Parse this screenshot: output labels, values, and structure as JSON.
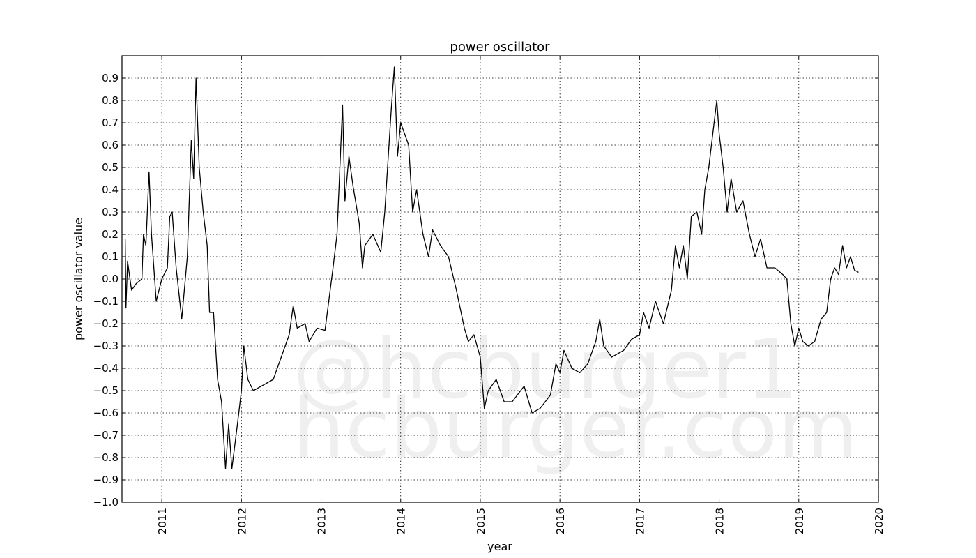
{
  "chart_data": {
    "type": "line",
    "title": "power oscillator",
    "xlabel": "year",
    "ylabel": "power oscillator value",
    "xlim": [
      2010.5,
      2020
    ],
    "ylim": [
      -1.0,
      1.0
    ],
    "grid": true,
    "line_color": "#000000",
    "xticks": [
      "2011",
      "2012",
      "2013",
      "2014",
      "2015",
      "2016",
      "2017",
      "2018",
      "2019",
      "2020"
    ],
    "yticks": [
      "−1.0",
      "−0.9",
      "−0.8",
      "−0.7",
      "−0.6",
      "−0.5",
      "−0.4",
      "−0.3",
      "−0.2",
      "−0.1",
      "0.0",
      "0.1",
      "0.2",
      "0.3",
      "0.4",
      "0.5",
      "0.6",
      "0.7",
      "0.8",
      "0.9"
    ],
    "watermark": [
      "@hcburger1",
      "hcburger.com"
    ],
    "series": [
      {
        "points": [
          [
            2010.54,
            0.18
          ],
          [
            2010.55,
            -0.13
          ],
          [
            2010.57,
            0.08
          ],
          [
            2010.62,
            -0.05
          ],
          [
            2010.68,
            -0.02
          ],
          [
            2010.75,
            0.0
          ],
          [
            2010.77,
            0.2
          ],
          [
            2010.8,
            0.15
          ],
          [
            2010.84,
            0.48
          ],
          [
            2010.87,
            0.2
          ],
          [
            2010.93,
            -0.1
          ],
          [
            2011.0,
            0.0
          ],
          [
            2011.07,
            0.05
          ],
          [
            2011.1,
            0.28
          ],
          [
            2011.13,
            0.3
          ],
          [
            2011.18,
            0.05
          ],
          [
            2011.25,
            -0.18
          ],
          [
            2011.32,
            0.1
          ],
          [
            2011.37,
            0.62
          ],
          [
            2011.4,
            0.45
          ],
          [
            2011.43,
            0.9
          ],
          [
            2011.47,
            0.5
          ],
          [
            2011.52,
            0.3
          ],
          [
            2011.57,
            0.15
          ],
          [
            2011.6,
            -0.15
          ],
          [
            2011.65,
            -0.15
          ],
          [
            2011.7,
            -0.45
          ],
          [
            2011.75,
            -0.55
          ],
          [
            2011.8,
            -0.85
          ],
          [
            2011.84,
            -0.65
          ],
          [
            2011.88,
            -0.85
          ],
          [
            2011.95,
            -0.65
          ],
          [
            2012.0,
            -0.5
          ],
          [
            2012.03,
            -0.3
          ],
          [
            2012.08,
            -0.45
          ],
          [
            2012.15,
            -0.5
          ],
          [
            2012.25,
            -0.48
          ],
          [
            2012.4,
            -0.45
          ],
          [
            2012.5,
            -0.35
          ],
          [
            2012.6,
            -0.25
          ],
          [
            2012.65,
            -0.12
          ],
          [
            2012.7,
            -0.22
          ],
          [
            2012.8,
            -0.2
          ],
          [
            2012.85,
            -0.28
          ],
          [
            2012.95,
            -0.22
          ],
          [
            2013.05,
            -0.23
          ],
          [
            2013.15,
            0.05
          ],
          [
            2013.2,
            0.2
          ],
          [
            2013.27,
            0.78
          ],
          [
            2013.3,
            0.35
          ],
          [
            2013.35,
            0.55
          ],
          [
            2013.4,
            0.42
          ],
          [
            2013.48,
            0.25
          ],
          [
            2013.52,
            0.05
          ],
          [
            2013.55,
            0.15
          ],
          [
            2013.65,
            0.2
          ],
          [
            2013.75,
            0.12
          ],
          [
            2013.8,
            0.3
          ],
          [
            2013.88,
            0.75
          ],
          [
            2013.92,
            0.95
          ],
          [
            2013.96,
            0.55
          ],
          [
            2014.0,
            0.7
          ],
          [
            2014.1,
            0.6
          ],
          [
            2014.15,
            0.3
          ],
          [
            2014.2,
            0.4
          ],
          [
            2014.28,
            0.2
          ],
          [
            2014.35,
            0.1
          ],
          [
            2014.4,
            0.22
          ],
          [
            2014.5,
            0.15
          ],
          [
            2014.6,
            0.1
          ],
          [
            2014.7,
            -0.05
          ],
          [
            2014.8,
            -0.22
          ],
          [
            2014.85,
            -0.28
          ],
          [
            2014.92,
            -0.25
          ],
          [
            2015.0,
            -0.35
          ],
          [
            2015.05,
            -0.58
          ],
          [
            2015.1,
            -0.5
          ],
          [
            2015.2,
            -0.45
          ],
          [
            2015.3,
            -0.55
          ],
          [
            2015.4,
            -0.55
          ],
          [
            2015.55,
            -0.48
          ],
          [
            2015.65,
            -0.6
          ],
          [
            2015.75,
            -0.58
          ],
          [
            2015.88,
            -0.52
          ],
          [
            2015.95,
            -0.38
          ],
          [
            2016.0,
            -0.42
          ],
          [
            2016.05,
            -0.32
          ],
          [
            2016.15,
            -0.4
          ],
          [
            2016.25,
            -0.42
          ],
          [
            2016.35,
            -0.38
          ],
          [
            2016.45,
            -0.28
          ],
          [
            2016.5,
            -0.18
          ],
          [
            2016.55,
            -0.3
          ],
          [
            2016.65,
            -0.35
          ],
          [
            2016.8,
            -0.32
          ],
          [
            2016.9,
            -0.27
          ],
          [
            2017.0,
            -0.25
          ],
          [
            2017.05,
            -0.15
          ],
          [
            2017.12,
            -0.22
          ],
          [
            2017.2,
            -0.1
          ],
          [
            2017.3,
            -0.2
          ],
          [
            2017.4,
            -0.05
          ],
          [
            2017.45,
            0.15
          ],
          [
            2017.5,
            0.05
          ],
          [
            2017.55,
            0.15
          ],
          [
            2017.6,
            0.0
          ],
          [
            2017.65,
            0.28
          ],
          [
            2017.72,
            0.3
          ],
          [
            2017.78,
            0.2
          ],
          [
            2017.82,
            0.4
          ],
          [
            2017.87,
            0.5
          ],
          [
            2017.92,
            0.65
          ],
          [
            2017.97,
            0.8
          ],
          [
            2018.0,
            0.65
          ],
          [
            2018.05,
            0.5
          ],
          [
            2018.1,
            0.3
          ],
          [
            2018.15,
            0.45
          ],
          [
            2018.22,
            0.3
          ],
          [
            2018.3,
            0.35
          ],
          [
            2018.38,
            0.2
          ],
          [
            2018.45,
            0.1
          ],
          [
            2018.52,
            0.18
          ],
          [
            2018.6,
            0.05
          ],
          [
            2018.7,
            0.05
          ],
          [
            2018.8,
            0.02
          ],
          [
            2018.85,
            0.0
          ],
          [
            2018.9,
            -0.2
          ],
          [
            2018.95,
            -0.3
          ],
          [
            2019.0,
            -0.22
          ],
          [
            2019.05,
            -0.28
          ],
          [
            2019.12,
            -0.3
          ],
          [
            2019.2,
            -0.28
          ],
          [
            2019.28,
            -0.18
          ],
          [
            2019.35,
            -0.15
          ],
          [
            2019.4,
            0.0
          ],
          [
            2019.45,
            0.05
          ],
          [
            2019.5,
            0.02
          ],
          [
            2019.55,
            0.15
          ],
          [
            2019.6,
            0.05
          ],
          [
            2019.65,
            0.1
          ],
          [
            2019.7,
            0.04
          ],
          [
            2019.75,
            0.03
          ]
        ]
      }
    ]
  }
}
